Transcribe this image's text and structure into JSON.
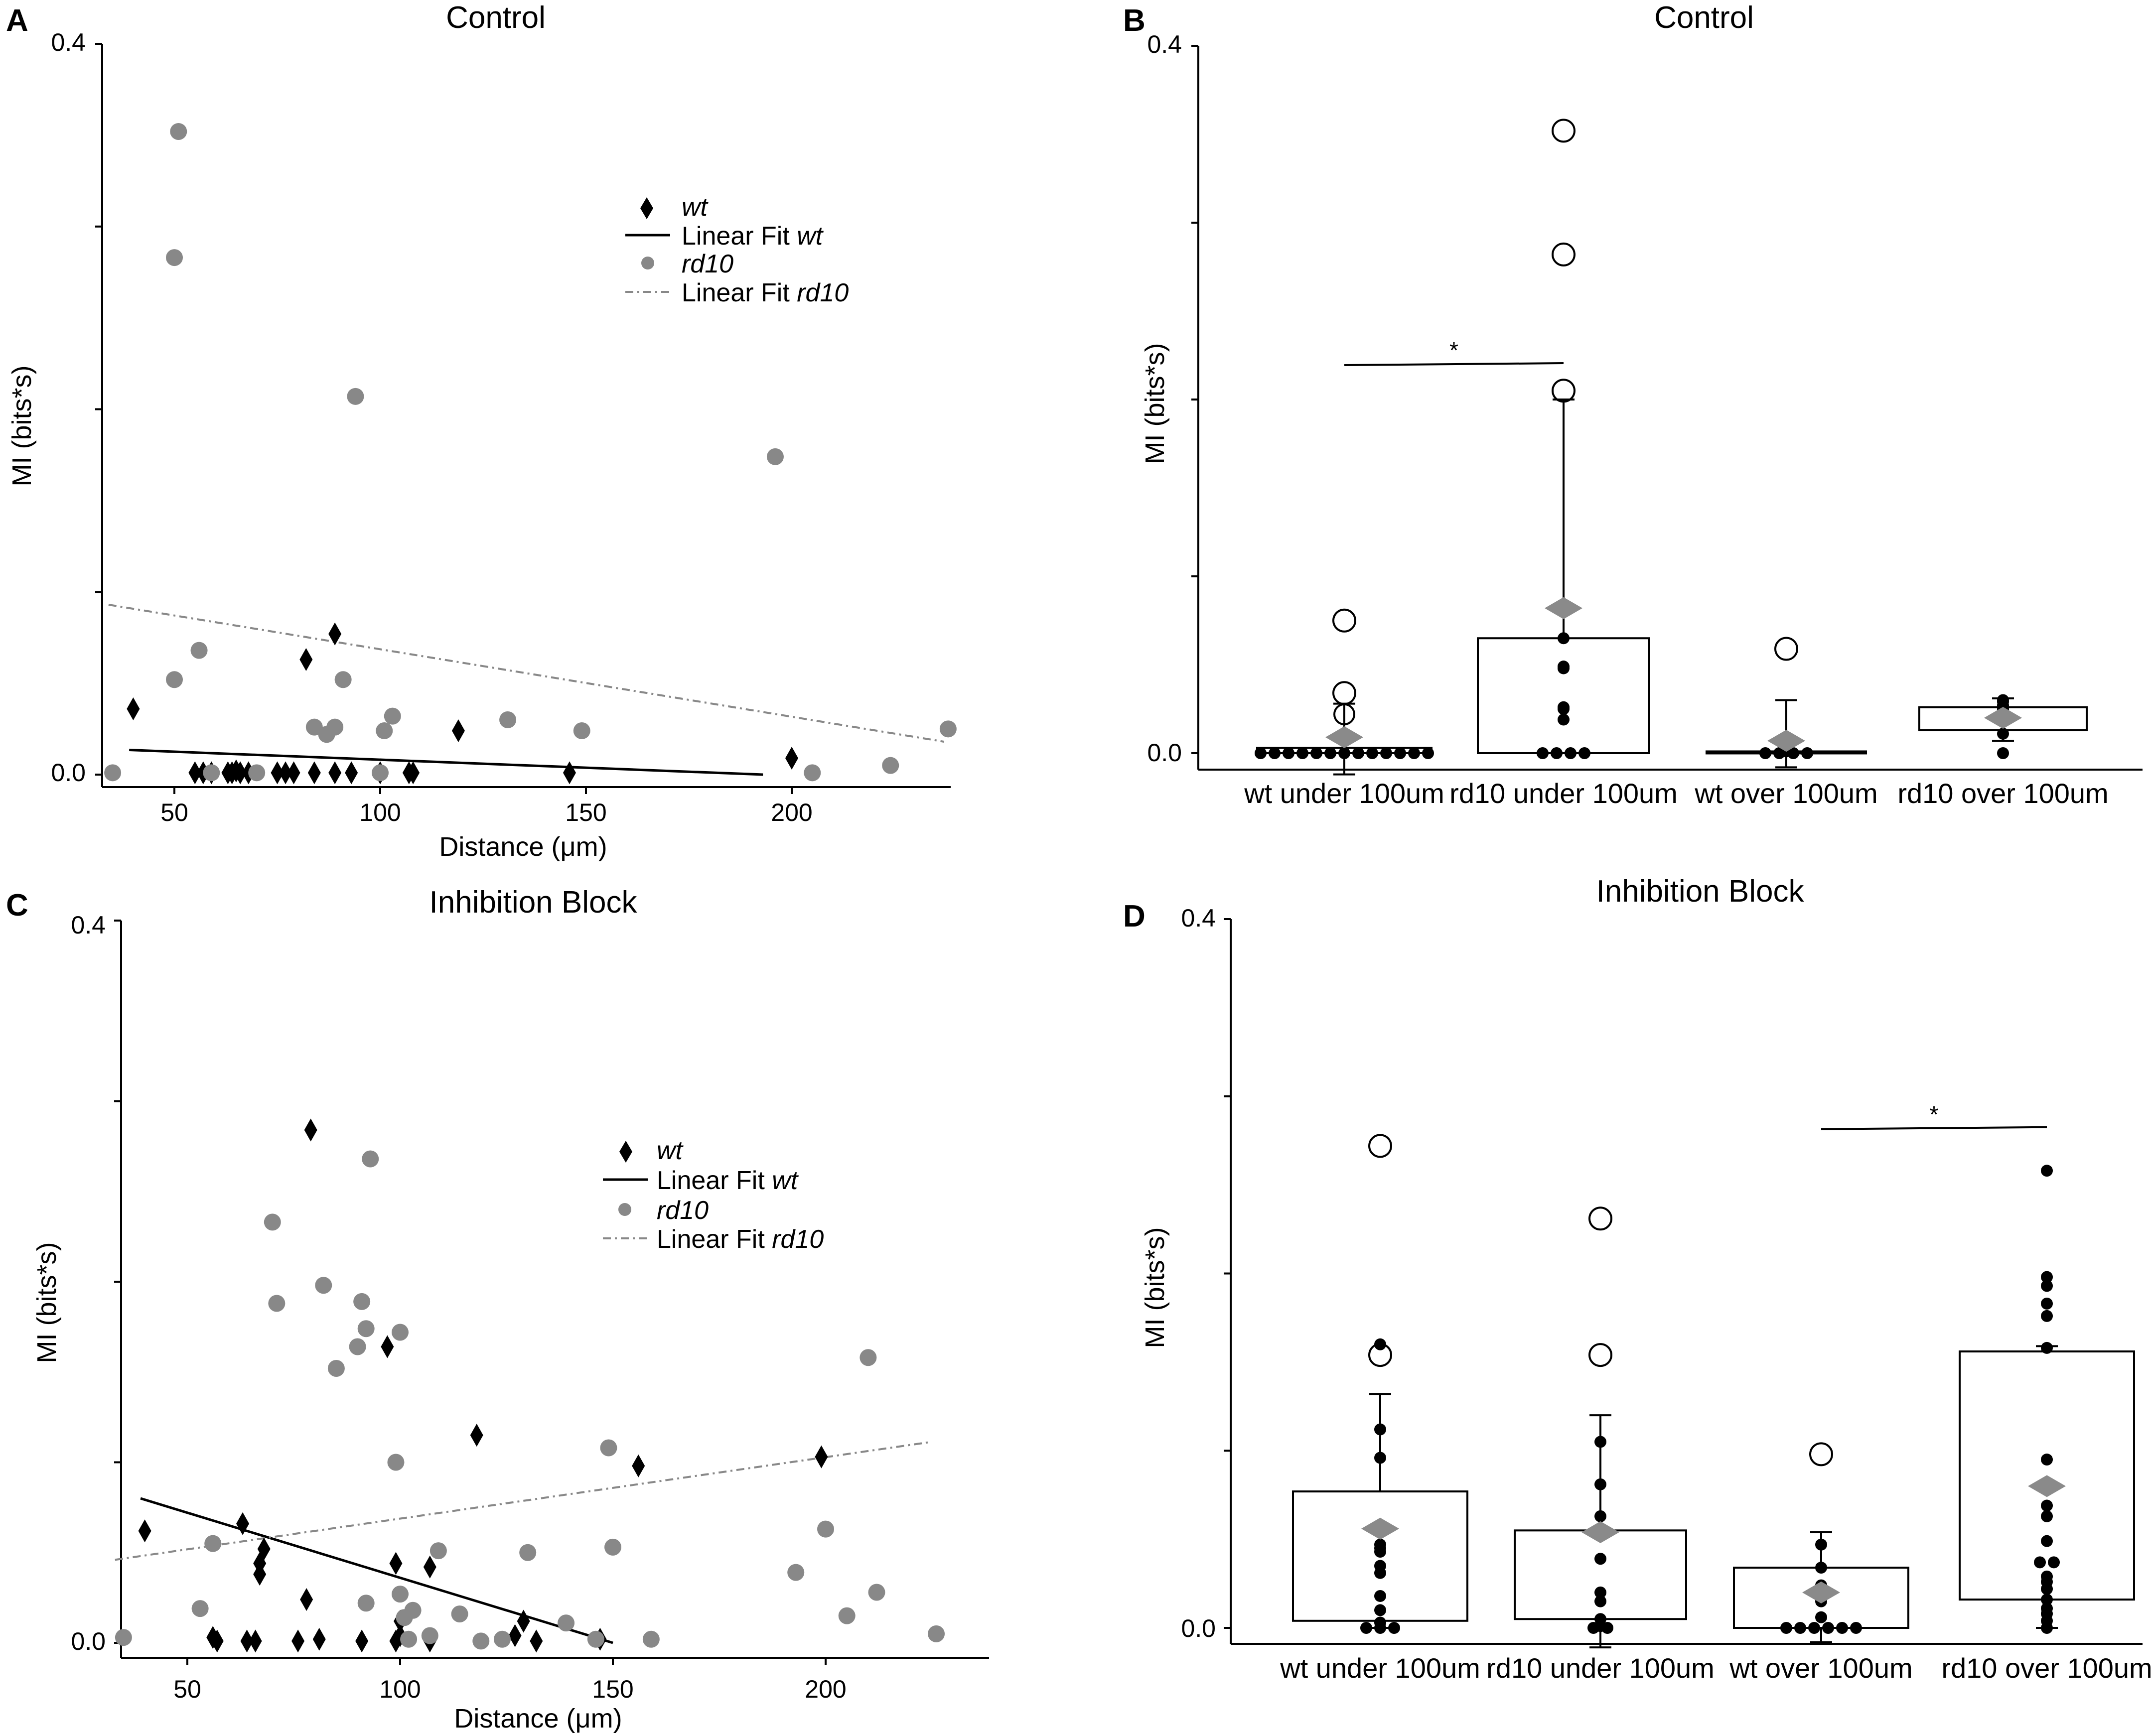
{
  "panels": [
    {
      "id": "A",
      "title": "Control",
      "xlabel": "Distance (μm)",
      "ylabel": "MI (bits*s)",
      "yticks": [
        "0.4",
        "0.0"
      ],
      "xticks": [
        "50",
        "100",
        "150",
        "200"
      ],
      "legend": [
        {
          "name": "wt",
          "italic": true,
          "marker": "diamond"
        },
        {
          "pre": "Linear Fit ",
          "name": "wt",
          "marker": "solid"
        },
        {
          "name": "rd10",
          "italic": true,
          "marker": "circle"
        },
        {
          "pre": "Linear Fit ",
          "name": "rd10",
          "marker": "dashdot"
        }
      ]
    },
    {
      "id": "B",
      "title": "Control",
      "ylabel": "MI (bits*s)",
      "yticks": [
        "0.4",
        "0.0"
      ],
      "categories": [
        "wt under 100um",
        "rd10 under 100um",
        "wt over 100um",
        "rd10 over 100um"
      ],
      "significance": "*"
    },
    {
      "id": "C",
      "title": "Inhibition Block",
      "xlabel": "Distance (μm)",
      "ylabel": "MI (bits*s)",
      "yticks": [
        "0.4",
        "0.0"
      ],
      "xticks": [
        "50",
        "100",
        "150",
        "200"
      ],
      "legend": [
        {
          "name": "wt",
          "italic": true,
          "marker": "diamond"
        },
        {
          "pre": "Linear Fit ",
          "name": "wt",
          "marker": "solid"
        },
        {
          "name": "rd10",
          "italic": true,
          "marker": "circle"
        },
        {
          "pre": "Linear Fit ",
          "name": "rd10",
          "marker": "dashdot"
        }
      ]
    },
    {
      "id": "D",
      "title": "Inhibition Block",
      "ylabel": "MI (bits*s)",
      "yticks": [
        "0.4",
        "0.0"
      ],
      "categories": [
        "wt under 100um",
        "rd10 under 100um",
        "wt over 100um",
        "rd10 over 100um"
      ],
      "significance": "*"
    }
  ],
  "colors": {
    "wt": "#000000",
    "rd10": "#888888",
    "mean": "#8a8a8a"
  },
  "chart_data": [
    {
      "panel": "A",
      "type": "scatter",
      "title": "Control",
      "xlabel": "Distance (μm)",
      "ylabel": "MI (bits*s)",
      "xlim": [
        32,
        240
      ],
      "ylim": [
        -0.008,
        0.4
      ],
      "series": [
        {
          "name": "wt",
          "marker": "diamond",
          "points": [
            [
              40,
              0.036
            ],
            [
              55,
              0.001
            ],
            [
              57,
              0.001
            ],
            [
              59,
              0.001
            ],
            [
              63,
              0.001
            ],
            [
              64,
              0.001
            ],
            [
              65,
              0.002
            ],
            [
              66,
              0.001
            ],
            [
              68,
              0.001
            ],
            [
              75,
              0.001
            ],
            [
              77,
              0.001
            ],
            [
              79,
              0.001
            ],
            [
              82,
              0.063
            ],
            [
              84,
              0.001
            ],
            [
              89,
              0.001
            ],
            [
              89,
              0.077
            ],
            [
              93,
              0.001
            ],
            [
              100,
              0.001
            ],
            [
              107,
              0.001
            ],
            [
              108,
              0.001
            ],
            [
              119,
              0.024
            ],
            [
              146,
              0.001
            ],
            [
              200,
              0.009
            ]
          ]
        },
        {
          "name": "rd10",
          "marker": "circle",
          "points": [
            [
              35,
              0.001
            ],
            [
              50,
              0.052
            ],
            [
              50,
              0.283
            ],
            [
              51,
              0.352
            ],
            [
              56,
              0.068
            ],
            [
              59,
              0.001
            ],
            [
              70,
              0.001
            ],
            [
              84,
              0.026
            ],
            [
              87,
              0.022
            ],
            [
              89,
              0.026
            ],
            [
              91,
              0.052
            ],
            [
              94,
              0.207
            ],
            [
              100,
              0.001
            ],
            [
              101,
              0.024
            ],
            [
              103,
              0.032
            ],
            [
              131,
              0.03
            ],
            [
              149,
              0.024
            ],
            [
              196,
              0.174
            ],
            [
              205,
              0.001
            ],
            [
              224,
              0.005
            ],
            [
              238,
              0.025
            ]
          ]
        }
      ],
      "fits": [
        {
          "name": "Linear Fit wt",
          "x": [
            39,
            193
          ],
          "y": [
            0.0135,
            0.0
          ]
        },
        {
          "name": "Linear Fit rd10",
          "x": [
            34,
            237
          ],
          "y": [
            0.093,
            0.018
          ]
        }
      ]
    },
    {
      "panel": "B",
      "type": "box",
      "title": "Control",
      "ylabel": "MI (bits*s)",
      "ylim": [
        -0.012,
        0.4
      ],
      "categories": [
        "wt under 100um",
        "rd10 under 100um",
        "wt over 100um",
        "rd10 over 100um"
      ],
      "boxes": [
        {
          "q1": 0.0,
          "q3": 0.003,
          "median": 0.001,
          "whisker_low": -0.012,
          "whisker_high": 0.028,
          "mean": 0.009,
          "points": [
            0.0,
            0.0,
            0.0,
            0.0,
            0.0,
            0.0,
            0.0,
            0.0,
            0.0,
            0.0,
            0.0,
            0.0,
            0.0
          ],
          "outliers": [
            0.075,
            0.034,
            0.022
          ]
        },
        {
          "q1": 0.0,
          "q3": 0.065,
          "median": 0.025,
          "whisker_low": 0.0,
          "whisker_high": 0.2,
          "mean": 0.082,
          "points": [
            0.065,
            0.049,
            0.048,
            0.026,
            0.025,
            0.019,
            0.0,
            0.0,
            0.0,
            0.0
          ],
          "outliers": [
            0.352,
            0.282,
            0.205
          ]
        },
        {
          "q1": 0.0,
          "q3": 0.001,
          "median": 0.0,
          "whisker_low": -0.008,
          "whisker_high": 0.03,
          "mean": 0.007,
          "points": [
            0.002,
            0.001,
            0.0,
            0.0,
            0.0,
            0.0
          ],
          "outliers": [
            0.059
          ]
        },
        {
          "q1": 0.013,
          "q3": 0.026,
          "median": 0.02,
          "whisker_low": 0.007,
          "whisker_high": 0.031,
          "mean": 0.02,
          "points": [
            0.03,
            0.029,
            0.027,
            0.025,
            0.022,
            0.011,
            0.0
          ],
          "outliers": []
        }
      ],
      "significance": [
        {
          "from": 0,
          "to": 1,
          "y": 0.22,
          "label": "*"
        }
      ]
    },
    {
      "panel": "C",
      "type": "scatter",
      "title": "Inhibition Block",
      "xlabel": "Distance (μm)",
      "ylabel": "MI (bits*s)",
      "xlim": [
        32,
        240
      ],
      "ylim": [
        -0.008,
        0.4
      ],
      "series": [
        {
          "name": "wt",
          "marker": "diamond",
          "points": [
            [
              40,
              0.062
            ],
            [
              56,
              0.003
            ],
            [
              57,
              0.001
            ],
            [
              63,
              0.066
            ],
            [
              64,
              0.001
            ],
            [
              66,
              0.001
            ],
            [
              67,
              0.038
            ],
            [
              67,
              0.044
            ],
            [
              68,
              0.052
            ],
            [
              76,
              0.001
            ],
            [
              78,
              0.024
            ],
            [
              79,
              0.284
            ],
            [
              81,
              0.002
            ],
            [
              91,
              0.001
            ],
            [
              97,
              0.164
            ],
            [
              99,
              0.001
            ],
            [
              99,
              0.044
            ],
            [
              100,
              0.012
            ],
            [
              100,
              0.004
            ],
            [
              107,
              0.042
            ],
            [
              107,
              0.001
            ],
            [
              118,
              0.115
            ],
            [
              127,
              0.004
            ],
            [
              129,
              0.012
            ],
            [
              132,
              0.001
            ],
            [
              147,
              0.002
            ],
            [
              156,
              0.098
            ],
            [
              199,
              0.103
            ]
          ]
        },
        {
          "name": "rd10",
          "marker": "circle",
          "points": [
            [
              35,
              0.003
            ],
            [
              53,
              0.019
            ],
            [
              56,
              0.055
            ],
            [
              70,
              0.233
            ],
            [
              71,
              0.188
            ],
            [
              82,
              0.198
            ],
            [
              85,
              0.152
            ],
            [
              90,
              0.164
            ],
            [
              91,
              0.189
            ],
            [
              92,
              0.022
            ],
            [
              92,
              0.174
            ],
            [
              93,
              0.268
            ],
            [
              99,
              0.1
            ],
            [
              100,
              0.172
            ],
            [
              100,
              0.027
            ],
            [
              101,
              0.014
            ],
            [
              102,
              0.002
            ],
            [
              103,
              0.018
            ],
            [
              107,
              0.004
            ],
            [
              109,
              0.051
            ],
            [
              114,
              0.016
            ],
            [
              119,
              0.001
            ],
            [
              124,
              0.002
            ],
            [
              130,
              0.05
            ],
            [
              139,
              0.011
            ],
            [
              146,
              0.002
            ],
            [
              149,
              0.108
            ],
            [
              150,
              0.053
            ],
            [
              159,
              0.002
            ],
            [
              193,
              0.039
            ],
            [
              200,
              0.063
            ],
            [
              205,
              0.015
            ],
            [
              210,
              0.158
            ],
            [
              212,
              0.028
            ],
            [
              226,
              0.005
            ]
          ]
        }
      ],
      "fits": [
        {
          "name": "Linear Fit wt",
          "x": [
            39,
            150
          ],
          "y": [
            0.08,
            0.0
          ]
        },
        {
          "name": "Linear Fit rd10",
          "x": [
            33,
            224
          ],
          "y": [
            0.046,
            0.111
          ]
        }
      ]
    },
    {
      "panel": "D",
      "type": "box",
      "title": "Inhibition Block",
      "ylabel": "MI (bits*s)",
      "ylim": [
        -0.008,
        0.4
      ],
      "categories": [
        "wt under 100um",
        "rd10 under 100um",
        "wt over 100um",
        "rd10 over 100um"
      ],
      "boxes": [
        {
          "q1": 0.004,
          "q3": 0.077,
          "median": 0.04,
          "whisker_low": 0.0,
          "whisker_high": 0.132,
          "mean": 0.056,
          "points": [
            0.16,
            0.112,
            0.096,
            0.047,
            0.045,
            0.043,
            0.035,
            0.031,
            0.018,
            0.01,
            0.003,
            0.0,
            0.0,
            0.0
          ],
          "outliers": [
            0.272,
            0.154
          ]
        },
        {
          "q1": 0.005,
          "q3": 0.055,
          "median": 0.025,
          "whisker_low": -0.011,
          "whisker_high": 0.12,
          "mean": 0.054,
          "points": [
            0.105,
            0.081,
            0.063,
            0.056,
            0.039,
            0.02,
            0.015,
            0.005,
            0.001,
            0.0,
            0.0
          ],
          "outliers": [
            0.231,
            0.154
          ]
        },
        {
          "q1": 0.0,
          "q3": 0.034,
          "median": 0.01,
          "whisker_low": -0.008,
          "whisker_high": 0.054,
          "mean": 0.02,
          "points": [
            0.047,
            0.034,
            0.024,
            0.015,
            0.006,
            0.0,
            0.0,
            0.0,
            0.0,
            0.0,
            0.0
          ],
          "outliers": [
            0.098
          ]
        },
        {
          "q1": 0.016,
          "q3": 0.156,
          "median": 0.08,
          "whisker_low": 0.0,
          "whisker_high": 0.159,
          "mean": 0.08,
          "points": [
            0.258,
            0.198,
            0.193,
            0.183,
            0.176,
            0.158,
            0.095,
            0.069,
            0.063,
            0.049,
            0.037,
            0.037,
            0.029,
            0.026,
            0.022,
            0.016,
            0.011,
            0.008,
            0.004,
            0.0
          ],
          "outliers": []
        }
      ],
      "significance": [
        {
          "from": 2,
          "to": 3,
          "y": 0.282,
          "label": "*"
        }
      ]
    }
  ]
}
